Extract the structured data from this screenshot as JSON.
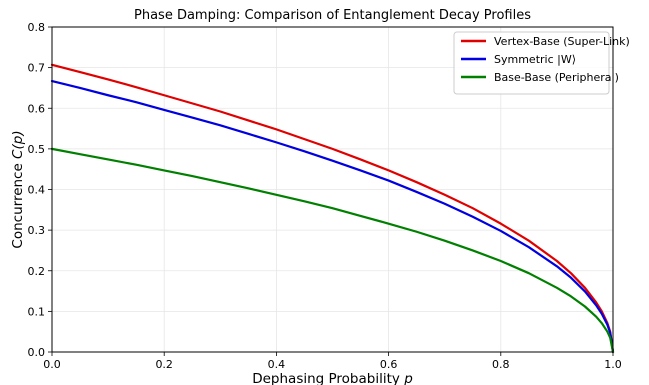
{
  "chart_data": {
    "type": "line",
    "title": "Phase Damping: Comparison of Entanglement Decay Profiles",
    "xlabel_main": "Dephasing Probability ",
    "xlabel_var": "p",
    "ylabel_main": "Concurrence ",
    "ylabel_var": "C(p)",
    "xlim": [
      0.0,
      1.0
    ],
    "ylim": [
      0.0,
      0.8
    ],
    "x_ticks": [
      "0.0",
      "0.2",
      "0.4",
      "0.6",
      "0.8",
      "1.0"
    ],
    "y_ticks": [
      "0.0",
      "0.1",
      "0.2",
      "0.3",
      "0.4",
      "0.5",
      "0.6",
      "0.7",
      "0.8"
    ],
    "grid": true,
    "legend_position": "top-right",
    "x": [
      0.0,
      0.05,
      0.1,
      0.15,
      0.2,
      0.25,
      0.3,
      0.35,
      0.4,
      0.45,
      0.5,
      0.55,
      0.6,
      0.65,
      0.7,
      0.75,
      0.8,
      0.85,
      0.9,
      0.925,
      0.95,
      0.97,
      0.98,
      0.99,
      0.995,
      1.0
    ],
    "series": [
      {
        "name": "Vertex-Base (Super-Link)",
        "color": "#e00000",
        "values": [
          0.707,
          0.689,
          0.671,
          0.652,
          0.632,
          0.612,
          0.592,
          0.57,
          0.548,
          0.524,
          0.5,
          0.474,
          0.447,
          0.418,
          0.387,
          0.354,
          0.316,
          0.274,
          0.224,
          0.194,
          0.158,
          0.122,
          0.1,
          0.071,
          0.05,
          0.0
        ]
      },
      {
        "name": "Symmetric |W⟩",
        "color": "#0000e0",
        "values": [
          0.667,
          0.65,
          0.632,
          0.615,
          0.596,
          0.577,
          0.558,
          0.537,
          0.516,
          0.494,
          0.471,
          0.447,
          0.422,
          0.394,
          0.365,
          0.333,
          0.298,
          0.258,
          0.211,
          0.183,
          0.149,
          0.115,
          0.094,
          0.067,
          0.047,
          0.0
        ]
      },
      {
        "name": "Base-Base (Peripheral)",
        "color": "#008000",
        "values": [
          0.5,
          0.487,
          0.474,
          0.461,
          0.447,
          0.433,
          0.418,
          0.403,
          0.387,
          0.371,
          0.354,
          0.335,
          0.316,
          0.296,
          0.274,
          0.25,
          0.224,
          0.194,
          0.158,
          0.137,
          0.112,
          0.087,
          0.071,
          0.05,
          0.035,
          0.0
        ]
      }
    ]
  },
  "colors": {
    "grid": "#e6e6e6",
    "axis": "#000000"
  }
}
